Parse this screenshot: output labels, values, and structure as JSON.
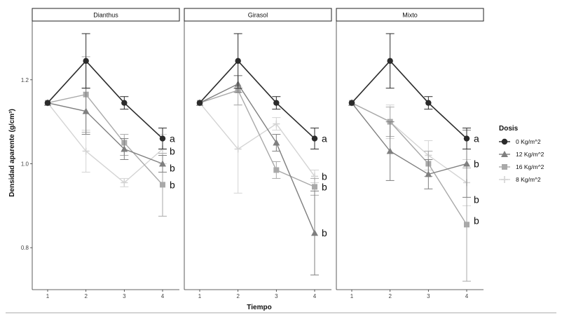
{
  "chart_data": {
    "type": "line",
    "xlabel": "Tiempo",
    "ylabel": "Densidad aparente (g/cm³)",
    "x": [
      1,
      2,
      3,
      4
    ],
    "ylim": [
      0.7,
      1.34
    ],
    "yticks": [
      0.8,
      1.0,
      1.2
    ],
    "legend": {
      "title": "Dosis",
      "position": "right",
      "entries": [
        "0 Kg/m^2",
        "12 Kg/m^2",
        "16 Kg/m^2",
        "8 Kg/m^2"
      ]
    },
    "series_style": [
      {
        "color": "#2b2b2b",
        "marker": "circle"
      },
      {
        "color": "#7f7f7f",
        "marker": "triangle"
      },
      {
        "color": "#a9a9a9",
        "marker": "square"
      },
      {
        "color": "#d4d4d4",
        "marker": "plus"
      }
    ],
    "panels": [
      {
        "title": "Dianthus",
        "series": [
          {
            "name": "0 Kg/m^2",
            "values": [
              1.145,
              1.245,
              1.145,
              1.06
            ],
            "lo": [
              1.145,
              1.18,
              1.13,
              1.035
            ],
            "hi": [
              1.145,
              1.31,
              1.16,
              1.085
            ]
          },
          {
            "name": "12 Kg/m^2",
            "values": [
              1.145,
              1.125,
              1.035,
              1.0
            ],
            "lo": [
              1.145,
              1.07,
              1.01,
              0.98
            ],
            "hi": [
              1.145,
              1.18,
              1.06,
              1.02
            ]
          },
          {
            "name": "16 Kg/m^2",
            "values": [
              1.145,
              1.165,
              1.05,
              0.95
            ],
            "lo": [
              1.145,
              1.075,
              1.02,
              0.875
            ],
            "hi": [
              1.145,
              1.255,
              1.07,
              1.025
            ]
          },
          {
            "name": "8 Kg/m^2",
            "values": [
              1.145,
              1.03,
              0.955,
              1.035
            ],
            "lo": [
              1.145,
              0.98,
              0.945,
              1.0
            ],
            "hi": [
              1.145,
              1.08,
              0.965,
              1.07
            ]
          }
        ],
        "letters": [
          {
            "text": "a",
            "y": 1.06
          },
          {
            "text": "b",
            "y": 1.03
          },
          {
            "text": "b",
            "y": 0.99
          },
          {
            "text": "b",
            "y": 0.95
          }
        ]
      },
      {
        "title": "Girasol",
        "series": [
          {
            "name": "0 Kg/m^2",
            "values": [
              1.145,
              1.245,
              1.145,
              1.06
            ],
            "lo": [
              1.145,
              1.18,
              1.13,
              1.035
            ],
            "hi": [
              1.145,
              1.31,
              1.16,
              1.085
            ]
          },
          {
            "name": "12 Kg/m^2",
            "values": [
              1.145,
              1.19,
              1.05,
              0.835
            ],
            "lo": [
              1.145,
              1.17,
              1.03,
              0.735
            ],
            "hi": [
              1.145,
              1.21,
              1.07,
              0.935
            ]
          },
          {
            "name": "16 Kg/m^2",
            "values": [
              1.145,
              1.175,
              0.985,
              0.945
            ],
            "lo": [
              1.145,
              1.14,
              0.965,
              0.925
            ],
            "hi": [
              1.145,
              1.21,
              1.005,
              0.965
            ]
          },
          {
            "name": "8 Kg/m^2",
            "values": [
              1.145,
              1.035,
              1.095,
              0.97
            ],
            "lo": [
              1.145,
              0.93,
              1.08,
              0.955
            ],
            "hi": [
              1.145,
              1.14,
              1.11,
              0.985
            ]
          }
        ],
        "letters": [
          {
            "text": "a",
            "y": 1.06
          },
          {
            "text": "b",
            "y": 0.97
          },
          {
            "text": "b",
            "y": 0.945
          },
          {
            "text": "b",
            "y": 0.835
          }
        ]
      },
      {
        "title": "Mixto",
        "series": [
          {
            "name": "0 Kg/m^2",
            "values": [
              1.145,
              1.245,
              1.145,
              1.06
            ],
            "lo": [
              1.145,
              1.18,
              1.13,
              1.035
            ],
            "hi": [
              1.145,
              1.31,
              1.16,
              1.085
            ]
          },
          {
            "name": "12 Kg/m^2",
            "values": [
              1.145,
              1.03,
              0.975,
              1.0
            ],
            "lo": [
              1.145,
              0.96,
              0.94,
              0.92
            ],
            "hi": [
              1.145,
              1.1,
              1.01,
              1.08
            ]
          },
          {
            "name": "16 Kg/m^2",
            "values": [
              1.145,
              1.1,
              1.0,
              0.855
            ],
            "lo": [
              1.145,
              1.065,
              0.97,
              0.72
            ],
            "hi": [
              1.145,
              1.135,
              1.03,
              0.99
            ]
          },
          {
            "name": "8 Kg/m^2",
            "values": [
              1.145,
              1.1,
              1.02,
              0.955
            ],
            "lo": [
              1.145,
              1.06,
              0.985,
              0.9
            ],
            "hi": [
              1.145,
              1.14,
              1.055,
              1.01
            ]
          }
        ],
        "letters": [
          {
            "text": "a",
            "y": 1.06
          },
          {
            "text": "b",
            "y": 1.0
          },
          {
            "text": "b",
            "y": 0.915
          },
          {
            "text": "b",
            "y": 0.865
          }
        ]
      }
    ]
  }
}
